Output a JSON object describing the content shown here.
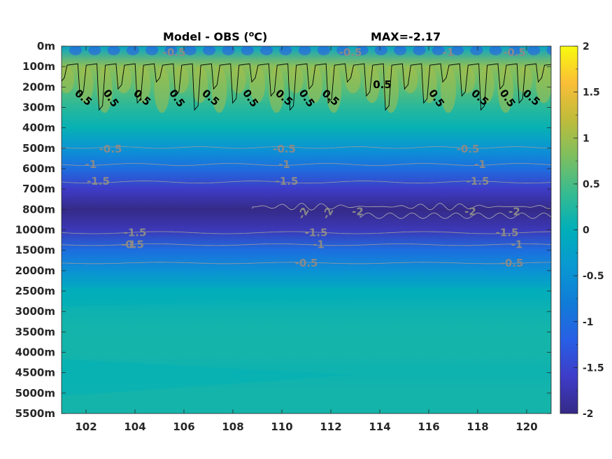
{
  "chart_data": {
    "type": "heatmap",
    "title": "Model - OBS (",
    "title_unit_sup": "o",
    "title_unit_end": "C)",
    "max_label": "MAX=-2.17",
    "xlabel": "",
    "ylabel": "",
    "x_ticks": [
      "102",
      "104",
      "106",
      "108",
      "110",
      "112",
      "114",
      "116",
      "118",
      "120"
    ],
    "x_tick_values": [
      102,
      104,
      106,
      108,
      110,
      112,
      114,
      116,
      118,
      120
    ],
    "xlim": [
      101,
      121
    ],
    "y_ticks": [
      "0m",
      "100m",
      "200m",
      "300m",
      "400m",
      "500m",
      "600m",
      "700m",
      "800m",
      "1000m",
      "1500m",
      "2000m",
      "2500m",
      "3000m",
      "3500m",
      "4000m",
      "4500m",
      "5000m",
      "5500m"
    ],
    "colorbar": {
      "ticks": [
        "2",
        "1.5",
        "1",
        "0.5",
        "0",
        "-0.5",
        "-1",
        "-1.5",
        "-2"
      ],
      "tick_values": [
        2,
        1.5,
        1,
        0.5,
        0,
        -0.5,
        -1,
        -1.5,
        -2
      ],
      "range": [
        -2,
        2
      ],
      "colormap": "parula"
    },
    "depth_profile": {
      "depth_labels": [
        "0m",
        "100m",
        "200m",
        "300m",
        "400m",
        "500m",
        "600m",
        "700m",
        "800m",
        "1000m",
        "1500m",
        "2000m",
        "2500m",
        "3000m",
        "3500m",
        "4000m",
        "4500m",
        "5000m",
        "5500m"
      ],
      "values": [
        -0.2,
        0.9,
        0.6,
        0.3,
        0.05,
        -0.45,
        -1.0,
        -1.6,
        -2.0,
        -1.7,
        -1.0,
        -0.5,
        -0.05,
        0.1,
        0.15,
        0.15,
        0.1,
        0.15,
        0.15
      ]
    },
    "contour_labels": [
      {
        "text": "-0.5",
        "value": -0.5,
        "x": 105.6,
        "depth": "0m"
      },
      {
        "text": "-0.5",
        "value": -0.5,
        "x": 112.8,
        "depth": "0m"
      },
      {
        "text": "-1",
        "value": -1,
        "x": 116.8,
        "depth": "0m"
      },
      {
        "text": "-0.5",
        "value": -0.5,
        "x": 119.5,
        "depth": "0m"
      },
      {
        "text": "0.5",
        "value": 0.5,
        "x": 114.1,
        "depth": "100m"
      },
      {
        "text": "0.5",
        "value": 0.5,
        "x": 101.8,
        "depth": "200m"
      },
      {
        "text": "0.5",
        "value": 0.5,
        "x": 102.9,
        "depth": "200m"
      },
      {
        "text": "0.5",
        "value": 0.5,
        "x": 104.2,
        "depth": "200m"
      },
      {
        "text": "0.5",
        "value": 0.5,
        "x": 105.6,
        "depth": "200m"
      },
      {
        "text": "0.5",
        "value": 0.5,
        "x": 107.0,
        "depth": "200m"
      },
      {
        "text": "0.5",
        "value": 0.5,
        "x": 108.6,
        "depth": "200m"
      },
      {
        "text": "0.5",
        "value": 0.5,
        "x": 110.0,
        "depth": "200m"
      },
      {
        "text": "0.5",
        "value": 0.5,
        "x": 110.9,
        "depth": "200m"
      },
      {
        "text": "0.5",
        "value": 0.5,
        "x": 111.9,
        "depth": "200m"
      },
      {
        "text": "0.5",
        "value": 0.5,
        "x": 116.2,
        "depth": "200m"
      },
      {
        "text": "0.5",
        "value": 0.5,
        "x": 118.0,
        "depth": "200m"
      },
      {
        "text": "0.5",
        "value": 0.5,
        "x": 119.1,
        "depth": "200m"
      },
      {
        "text": "0.5",
        "value": 0.5,
        "x": 120.1,
        "depth": "200m"
      },
      {
        "text": "-0.5",
        "value": -0.5,
        "x": 103.0,
        "depth": "500m"
      },
      {
        "text": "-0.5",
        "value": -0.5,
        "x": 110.1,
        "depth": "500m"
      },
      {
        "text": "-0.5",
        "value": -0.5,
        "x": 117.6,
        "depth": "500m"
      },
      {
        "text": "-1",
        "value": -1,
        "x": 102.2,
        "depth": "600m"
      },
      {
        "text": "-1",
        "value": -1,
        "x": 110.1,
        "depth": "600m"
      },
      {
        "text": "-1",
        "value": -1,
        "x": 118.1,
        "depth": "600m"
      },
      {
        "text": "-1.5",
        "value": -1.5,
        "x": 102.5,
        "depth": "700m"
      },
      {
        "text": "-1.5",
        "value": -1.5,
        "x": 110.2,
        "depth": "700m"
      },
      {
        "text": "-1.5",
        "value": -1.5,
        "x": 118.0,
        "depth": "700m"
      },
      {
        "text": "-2",
        "value": -2,
        "x": 111.0,
        "depth": "800m"
      },
      {
        "text": "-2",
        "value": -2,
        "x": 112.0,
        "depth": "800m"
      },
      {
        "text": "-2",
        "value": -2,
        "x": 113.1,
        "depth": "800m"
      },
      {
        "text": "-2",
        "value": -2,
        "x": 117.7,
        "depth": "800m"
      },
      {
        "text": "-2",
        "value": -2,
        "x": 119.5,
        "depth": "800m"
      },
      {
        "text": "-1.5",
        "value": -1.5,
        "x": 104.0,
        "depth": "1000m"
      },
      {
        "text": "-1.5",
        "value": -1.5,
        "x": 111.4,
        "depth": "1000m"
      },
      {
        "text": "-1.5",
        "value": -1.5,
        "x": 119.2,
        "depth": "1000m"
      },
      {
        "text": "-1",
        "value": -1,
        "x": 103.8,
        "depth": "1500m"
      },
      {
        "text": "-1",
        "value": -1,
        "x": 111.5,
        "depth": "1500m"
      },
      {
        "text": "-1",
        "value": -1,
        "x": 119.6,
        "depth": "1500m"
      },
      {
        "text": "-0.5",
        "value": -0.5,
        "x": 103.9,
        "depth": "1500m"
      },
      {
        "text": "-0.5",
        "value": -0.5,
        "x": 111.0,
        "depth": "2000m"
      },
      {
        "text": "-0.5",
        "value": -0.5,
        "x": 119.4,
        "depth": "2000m"
      }
    ]
  }
}
